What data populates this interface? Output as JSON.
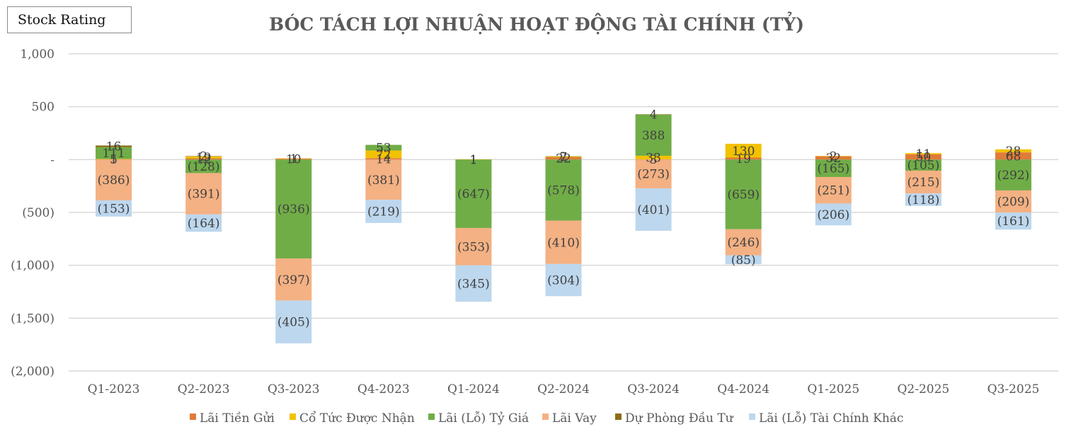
{
  "badge": {
    "label": "Stock Rating"
  },
  "chart_data": {
    "type": "bar",
    "stacked": true,
    "title": "BÓC TÁCH LỢI NHUẬN HOẠT ĐỘNG TÀI CHÍNH (TỶ)",
    "xlabel": "",
    "ylabel": "",
    "ylim": [
      -2000,
      1000
    ],
    "yticks": [
      1000,
      500,
      0,
      -500,
      -1000,
      -1500,
      -2000
    ],
    "ytick_labels": [
      "1,000",
      "500",
      "-",
      "(500)",
      "(1,000)",
      "(1,500)",
      "(2,000)"
    ],
    "grid": true,
    "legend_position": "bottom",
    "categories": [
      "Q1-2023",
      "Q2-2023",
      "Q3-2023",
      "Q4-2023",
      "Q1-2024",
      "Q2-2024",
      "Q3-2024",
      "Q4-2024",
      "Q1-2025",
      "Q2-2025",
      "Q3-2025"
    ],
    "series": [
      {
        "name": "Lãi Tiền Gửi",
        "color": "#E07B39",
        "values": [
          5,
          12,
          10,
          14,
          1,
          22,
          3,
          19,
          32,
          50,
          68
        ]
      },
      {
        "name": "Cổ Tức Được Nhận",
        "color": "#F2C200",
        "values": [
          1,
          19,
          1,
          72,
          1,
          7,
          33,
          130,
          2,
          11,
          28
        ]
      },
      {
        "name": "Lãi (Lỗ) Tỷ Giá",
        "color": "#70AD47",
        "values": [
          111,
          -128,
          -936,
          53,
          -647,
          -578,
          388,
          -659,
          -165,
          -105,
          -292
        ]
      },
      {
        "name": "Lãi Vay",
        "color": "#F4B183",
        "values": [
          -386,
          -391,
          -397,
          -381,
          -353,
          -410,
          -273,
          -246,
          -251,
          -215,
          -209
        ]
      },
      {
        "name": "Dự Phòng Đầu Tư",
        "color": "#8B6D14",
        "values": [
          16,
          2,
          0,
          0,
          0,
          2,
          4,
          0,
          0,
          0,
          0
        ]
      },
      {
        "name": "Lãi (Lỗ) Tài Chính Khác",
        "color": "#BDD7EE",
        "values": [
          -153,
          -164,
          -405,
          -219,
          -345,
          -304,
          -401,
          -85,
          -206,
          -118,
          -161
        ]
      }
    ]
  }
}
